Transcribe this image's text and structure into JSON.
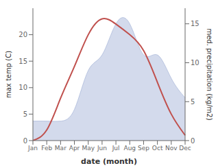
{
  "chart_data": {
    "type": "line",
    "xlabel": "date (month)",
    "ylabel": "max temp (C)",
    "y2label": "med. precipitation (kg/m2)",
    "categories": [
      "Jan",
      "Feb",
      "Mar",
      "Apr",
      "May",
      "Jun",
      "Jul",
      "Aug",
      "Sep",
      "Oct",
      "Nov",
      "Dec"
    ],
    "series": [
      {
        "type": "line",
        "color": "#c0504d",
        "axis": "y",
        "values": [
          0,
          2,
          8,
          14,
          20,
          23,
          22,
          20,
          17,
          11,
          5,
          1
        ]
      },
      {
        "type": "area",
        "color": "#9daed4",
        "axis": "y2",
        "values": [
          2.5,
          2.5,
          2.5,
          4.0,
          9.0,
          11.0,
          15.0,
          15.0,
          11.0,
          11.0,
          8.0,
          5.5
        ]
      }
    ],
    "ylim": [
      0,
      25
    ],
    "yticks": [
      0,
      5,
      10,
      15,
      20
    ],
    "y2lim": [
      0,
      17
    ],
    "y2ticks": [
      0,
      5,
      10,
      15
    ],
    "grid": false
  }
}
